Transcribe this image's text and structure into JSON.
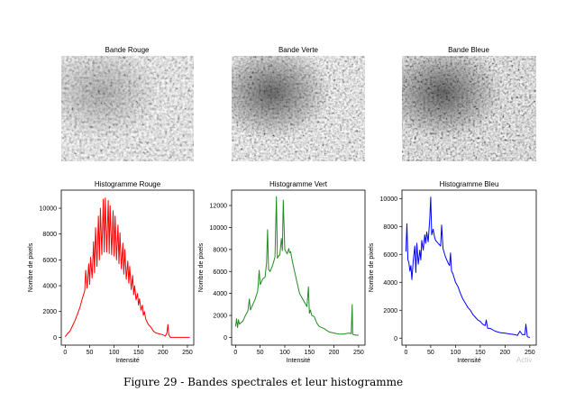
{
  "figure": {
    "caption": "Figure 29 - Bandes spectrales et leur histogramme",
    "watermark": "Activ"
  },
  "bands": [
    {
      "title": "Bande Rouge",
      "tone": "red"
    },
    {
      "title": "Bande Verte",
      "tone": "green"
    },
    {
      "title": "Bande Bleue",
      "tone": "blue"
    }
  ],
  "chart_data": [
    {
      "type": "line",
      "title": "Histogramme Rouge",
      "xlabel": "Intensité",
      "ylabel": "Nombre de pixels",
      "xlim": [
        -8,
        263
      ],
      "ylim": [
        -600,
        11400
      ],
      "xticks": [
        0,
        50,
        100,
        150,
        200,
        250
      ],
      "yticks": [
        0,
        2000,
        4000,
        6000,
        8000,
        10000
      ],
      "color": "#ff0000",
      "series": [
        {
          "x": [
            0,
            5,
            10,
            15,
            20,
            25,
            30,
            35,
            40,
            42,
            45,
            48,
            50,
            52,
            55,
            58,
            60,
            62,
            65,
            68,
            70,
            72,
            75,
            78,
            80,
            82,
            85,
            88,
            90,
            92,
            95,
            98,
            100,
            102,
            105,
            108,
            110,
            112,
            115,
            118,
            120,
            122,
            125,
            128,
            130,
            132,
            135,
            138,
            140,
            142,
            145,
            148,
            150,
            152,
            155,
            158,
            160,
            162,
            165,
            170,
            175,
            180,
            185,
            190,
            195,
            200,
            205,
            208,
            210,
            212,
            215,
            220,
            230,
            240,
            250,
            255
          ],
          "y": [
            50,
            300,
            500,
            900,
            1300,
            1800,
            2300,
            3000,
            3600,
            5200,
            3800,
            5700,
            4100,
            6200,
            4600,
            7400,
            5000,
            8500,
            5500,
            9400,
            6000,
            10000,
            6400,
            10700,
            6600,
            10800,
            6600,
            10600,
            6500,
            10200,
            6400,
            9800,
            6300,
            9400,
            6000,
            8700,
            5700,
            8100,
            5300,
            7300,
            4900,
            6800,
            4500,
            5900,
            4200,
            5500,
            3700,
            4800,
            3300,
            4000,
            2900,
            3400,
            2500,
            3000,
            2100,
            2500,
            1700,
            2000,
            1400,
            1000,
            800,
            500,
            350,
            300,
            250,
            200,
            100,
            350,
            1000,
            200,
            0,
            0,
            0,
            0,
            0,
            0
          ]
        }
      ]
    },
    {
      "type": "line",
      "title": "Histogramme Vert",
      "xlabel": "Intensité",
      "ylabel": "Nombre de pixels",
      "xlim": [
        -8,
        263
      ],
      "ylim": [
        -700,
        13400
      ],
      "xticks": [
        0,
        50,
        100,
        150,
        200,
        250
      ],
      "yticks": [
        0,
        2000,
        4000,
        6000,
        8000,
        10000,
        12000
      ],
      "color": "#228b22",
      "series": [
        {
          "x": [
            0,
            2,
            4,
            6,
            8,
            10,
            15,
            20,
            25,
            28,
            30,
            35,
            40,
            45,
            48,
            50,
            52,
            55,
            60,
            63,
            65,
            67,
            70,
            75,
            80,
            83,
            85,
            87,
            90,
            93,
            95,
            97,
            100,
            105,
            108,
            110,
            112,
            115,
            120,
            125,
            130,
            135,
            140,
            145,
            148,
            150,
            152,
            155,
            160,
            165,
            170,
            180,
            190,
            200,
            210,
            220,
            230,
            235,
            237,
            238,
            240,
            245,
            250
          ],
          "y": [
            1000,
            1700,
            900,
            1600,
            1200,
            1300,
            1500,
            2000,
            2400,
            3500,
            2500,
            3000,
            3500,
            4200,
            6100,
            4800,
            5000,
            5300,
            5500,
            6800,
            9800,
            6200,
            6000,
            6500,
            7300,
            12800,
            7200,
            7400,
            7500,
            9000,
            7900,
            12500,
            8000,
            7600,
            8100,
            7700,
            7800,
            7000,
            6000,
            5000,
            4000,
            3600,
            3200,
            2800,
            4600,
            2200,
            2500,
            2000,
            1900,
            1300,
            1000,
            800,
            500,
            400,
            300,
            300,
            400,
            350,
            3000,
            300,
            250,
            200,
            200
          ]
        }
      ]
    },
    {
      "type": "line",
      "title": "Histogramme Bleu",
      "xlabel": "Intensité",
      "ylabel": "Nombre de pixels",
      "xlim": [
        -8,
        263
      ],
      "ylim": [
        -500,
        10600
      ],
      "xticks": [
        0,
        50,
        100,
        150,
        200,
        250
      ],
      "yticks": [
        0,
        2000,
        4000,
        6000,
        8000,
        10000
      ],
      "color": "#0000ff",
      "series": [
        {
          "x": [
            0,
            2,
            4,
            6,
            8,
            10,
            12,
            15,
            18,
            20,
            22,
            25,
            28,
            30,
            32,
            35,
            38,
            40,
            42,
            45,
            48,
            50,
            52,
            55,
            58,
            60,
            65,
            70,
            72,
            75,
            80,
            85,
            88,
            90,
            92,
            95,
            100,
            105,
            110,
            115,
            120,
            125,
            130,
            135,
            140,
            145,
            150,
            155,
            160,
            162,
            165,
            170,
            180,
            190,
            200,
            210,
            220,
            225,
            230,
            235,
            240,
            242,
            245,
            250
          ],
          "y": [
            6200,
            8200,
            5600,
            5400,
            4800,
            5200,
            4200,
            5600,
            6600,
            4700,
            6800,
            5300,
            6300,
            5600,
            7000,
            6300,
            7400,
            6800,
            7600,
            6900,
            8500,
            10100,
            7400,
            7800,
            7200,
            7000,
            6800,
            6600,
            8100,
            6400,
            5800,
            5400,
            5200,
            6100,
            4800,
            4600,
            4000,
            3700,
            3200,
            2800,
            2500,
            2200,
            2000,
            1700,
            1500,
            1300,
            1200,
            1000,
            900,
            1300,
            700,
            700,
            500,
            400,
            350,
            300,
            250,
            200,
            500,
            250,
            250,
            1000,
            100,
            50
          ]
        }
      ]
    }
  ]
}
